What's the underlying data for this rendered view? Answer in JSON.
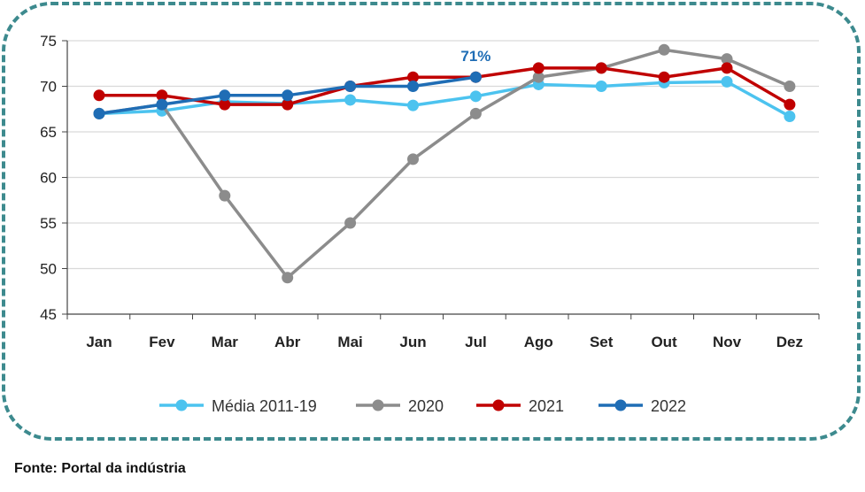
{
  "source": "Fonte: Portal da indústria",
  "chart_data": {
    "type": "line",
    "categories": [
      "Jan",
      "Fev",
      "Mar",
      "Abr",
      "Mai",
      "Jun",
      "Jul",
      "Ago",
      "Set",
      "Out",
      "Nov",
      "Dez"
    ],
    "ylim": [
      45,
      75
    ],
    "yticks": [
      45,
      50,
      55,
      60,
      65,
      70,
      75
    ],
    "grid": true,
    "legend_position": "bottom",
    "annotations": [
      {
        "category": "Jul",
        "series": "2022",
        "text": "71%",
        "color": "#1f6db5"
      }
    ],
    "series": [
      {
        "name": "Média 2011-19",
        "color": "#4cc3ef",
        "values": [
          67,
          67.3,
          68.3,
          68.1,
          68.5,
          67.9,
          68.9,
          70.2,
          70,
          70.4,
          70.5,
          66.7
        ]
      },
      {
        "name": "2020",
        "color": "#8c8c8c",
        "values": [
          67,
          68,
          58,
          49,
          55,
          62,
          67,
          71,
          72,
          74,
          73,
          70
        ]
      },
      {
        "name": "2021",
        "color": "#c00000",
        "values": [
          69,
          69,
          68,
          68,
          70,
          71,
          71,
          72,
          72,
          71,
          72,
          68
        ]
      },
      {
        "name": "2022",
        "color": "#1f6db5",
        "values": [
          67,
          68,
          69,
          69,
          70,
          70,
          71,
          null,
          null,
          null,
          null,
          null
        ]
      }
    ]
  }
}
